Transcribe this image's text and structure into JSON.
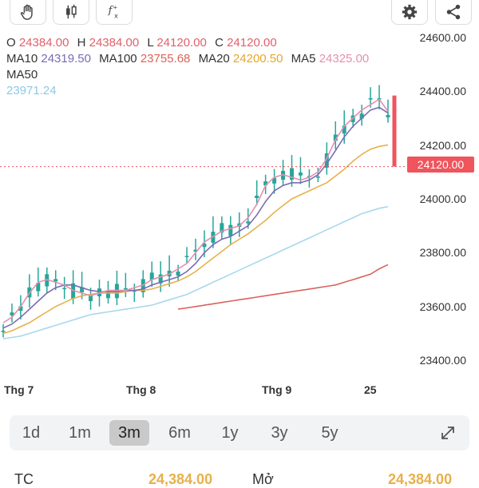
{
  "toolbar": {
    "tools": [
      {
        "name": "hand-tool-icon"
      },
      {
        "name": "candlestick-icon"
      },
      {
        "name": "function-icon"
      }
    ],
    "settings_icon": "gear-icon",
    "share_icon": "share-icon"
  },
  "legend": {
    "o_label": "O",
    "o_value": "24384.00",
    "h_label": "H",
    "h_value": "24384.00",
    "l_label": "L",
    "l_value": "24120.00",
    "c_label": "C",
    "c_value": "24120.00",
    "ma10_label": "MA10",
    "ma10_value": "24319.50",
    "ma100_label": "MA100",
    "ma100_value": "23755.68",
    "ma20_label": "MA20",
    "ma20_value": "24200.50",
    "ma5_label": "MA5",
    "ma5_value": "24325.00",
    "ma50_label": "MA50",
    "ma50_value": "23971.24"
  },
  "colors": {
    "candle": "#26a69a",
    "ma5": "#e58fb0",
    "ma10": "#7b6bb5",
    "ma20": "#e8b04a",
    "ma50": "#a8d8ee",
    "ma100": "#d9645c",
    "price_line": "#f0545c"
  },
  "current_price": "24120.00",
  "chart_data": {
    "type": "candlestick",
    "y_ticks": [
      "24600.00",
      "24400.00",
      "24200.00",
      "24000.00",
      "23800.00",
      "23600.00",
      "23400.00"
    ],
    "x_ticks": [
      "Thg 7",
      "Thg 8",
      "Thg 9",
      "25"
    ],
    "ylim": [
      23350,
      24650
    ],
    "last": {
      "open": 24384.0,
      "high": 24384.0,
      "low": 24120.0,
      "close": 24120.0
    },
    "ma5": [
      23540,
      23560,
      23600,
      23650,
      23690,
      23700,
      23690,
      23680,
      23660,
      23650,
      23640,
      23650,
      23660,
      23660,
      23660,
      23670,
      23680,
      23700,
      23710,
      23720,
      23740,
      23760,
      23800,
      23840,
      23860,
      23880,
      23890,
      23900,
      23930,
      23980,
      24050,
      24080,
      24090,
      24080,
      24070,
      24080,
      24100,
      24150,
      24220,
      24270,
      24300,
      24330,
      24350,
      24370,
      24325
    ],
    "ma10": [
      23520,
      23535,
      23560,
      23590,
      23620,
      23650,
      23670,
      23680,
      23680,
      23670,
      23660,
      23655,
      23655,
      23655,
      23660,
      23660,
      23665,
      23680,
      23690,
      23700,
      23710,
      23730,
      23760,
      23800,
      23830,
      23850,
      23860,
      23880,
      23900,
      23940,
      23990,
      24030,
      24050,
      24060,
      24060,
      24070,
      24090,
      24130,
      24180,
      24230,
      24270,
      24300,
      24330,
      24340,
      24319.5
    ],
    "ma20": [
      23500,
      23510,
      23525,
      23540,
      23560,
      23580,
      23600,
      23615,
      23630,
      23640,
      23645,
      23650,
      23650,
      23650,
      23655,
      23660,
      23660,
      23665,
      23675,
      23685,
      23695,
      23710,
      23730,
      23755,
      23780,
      23805,
      23830,
      23850,
      23870,
      23895,
      23920,
      23950,
      23975,
      24000,
      24015,
      24030,
      24045,
      24060,
      24085,
      24110,
      24140,
      24165,
      24185,
      24195,
      24200.5
    ],
    "ma50": [
      23480,
      23485,
      23490,
      23500,
      23510,
      23520,
      23530,
      23540,
      23550,
      23560,
      23570,
      23575,
      23580,
      23585,
      23590,
      23595,
      23600,
      23605,
      23615,
      23625,
      23635,
      23645,
      23660,
      23675,
      23690,
      23705,
      23720,
      23735,
      23750,
      23765,
      23780,
      23795,
      23810,
      23825,
      23840,
      23855,
      23870,
      23885,
      23900,
      23915,
      23930,
      23945,
      23955,
      23965,
      23971.24
    ],
    "ma100_start_index": 20,
    "ma100": [
      23590,
      23595,
      23600,
      23605,
      23610,
      23615,
      23620,
      23625,
      23630,
      23635,
      23640,
      23645,
      23650,
      23655,
      23660,
      23665,
      23670,
      23675,
      23680,
      23690,
      23700,
      23710,
      23720,
      23740,
      23755.68
    ]
  },
  "ranges": [
    "1d",
    "1m",
    "3m",
    "6m",
    "1y",
    "3y",
    "5y"
  ],
  "active_range": "3m",
  "expand_icon": "expand-icon",
  "bottom": {
    "left_label": "TC",
    "left_value": "24,384.00",
    "right_label": "Mở",
    "right_value": "24,384.00"
  }
}
